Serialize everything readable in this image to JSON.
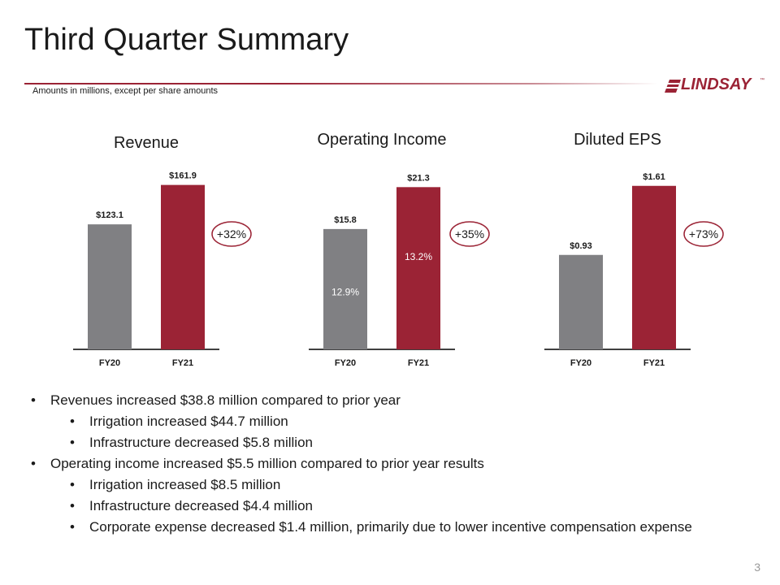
{
  "title": "Third Quarter Summary",
  "subtitle": "Amounts in millions, except per share amounts",
  "logo": {
    "text": "LINDSAY",
    "tm": "™"
  },
  "colors": {
    "fy20": "#808083",
    "fy21": "#9b2335",
    "accent": "#9b2335"
  },
  "chart_data": [
    {
      "type": "bar",
      "title": "Revenue",
      "categories": [
        "FY20",
        "FY21"
      ],
      "values": [
        123.1,
        161.9
      ],
      "labels": [
        "$123.1",
        "$161.9"
      ],
      "inner_labels": [
        "",
        ""
      ],
      "change": "+32%",
      "ylim": [
        0,
        180
      ]
    },
    {
      "type": "bar",
      "title": "Operating Income",
      "categories": [
        "FY20",
        "FY21"
      ],
      "values": [
        15.8,
        21.3
      ],
      "labels": [
        "$15.8",
        "$21.3"
      ],
      "inner_labels": [
        "12.9%",
        "13.2%"
      ],
      "change": "+35%",
      "ylim": [
        0,
        24
      ]
    },
    {
      "type": "bar",
      "title": "Diluted EPS",
      "categories": [
        "FY20",
        "FY21"
      ],
      "values": [
        0.93,
        1.61
      ],
      "labels": [
        "$0.93",
        "$1.61"
      ],
      "inner_labels": [
        "",
        ""
      ],
      "change": "+73%",
      "ylim": [
        0,
        1.8
      ]
    }
  ],
  "bullets": [
    {
      "level": 1,
      "text": "Revenues increased $38.8 million compared to prior year"
    },
    {
      "level": 2,
      "text": "Irrigation increased $44.7 million"
    },
    {
      "level": 2,
      "text": "Infrastructure decreased $5.8 million"
    },
    {
      "level": 1,
      "text": "Operating income increased $5.5 million compared to prior year results"
    },
    {
      "level": 2,
      "text": "Irrigation increased $8.5 million"
    },
    {
      "level": 2,
      "text": "Infrastructure decreased $4.4 million"
    },
    {
      "level": 2,
      "text": "Corporate expense decreased $1.4 million, primarily due to lower incentive compensation expense"
    }
  ],
  "page_number": "3"
}
